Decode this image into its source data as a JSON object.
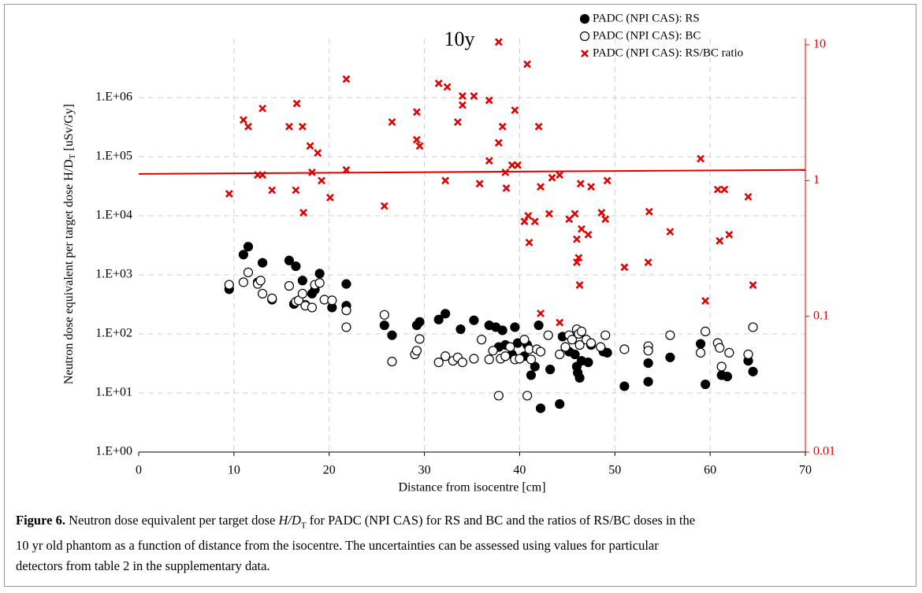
{
  "chart_data": {
    "type": "scatter",
    "title": "10y",
    "x_label": "Distance from isocentre [cm]",
    "y_label": [
      "Neutron dose equivalent per target dose  ",
      "H/D",
      "T",
      " [uSv/Gy]"
    ],
    "xlim": [
      0,
      70
    ],
    "xticks": [
      0,
      10,
      20,
      30,
      40,
      50,
      60,
      70
    ],
    "ylim": [
      1,
      10000000
    ],
    "ylog": true,
    "yticks": [
      {
        "value": 1,
        "label": "1.E+00"
      },
      {
        "value": 10,
        "label": "1.E+01"
      },
      {
        "value": 100,
        "label": "1.E+02"
      },
      {
        "value": 1000,
        "label": "1.E+03"
      },
      {
        "value": 10000,
        "label": "1.E+04"
      },
      {
        "value": 100000,
        "label": "1.E+05"
      },
      {
        "value": 1000000,
        "label": "1.E+06"
      }
    ],
    "y2lim": [
      0.01,
      10
    ],
    "y2log": true,
    "y2ticks": [
      0.01,
      0.1,
      1,
      10
    ],
    "y2color": "#e00000",
    "grid": true,
    "legend": "top-right",
    "series": [
      {
        "name": "PADC (NPI CAS): RS",
        "marker": "filled",
        "color": "#000000",
        "x": [
          9.5,
          11.0,
          11.5,
          12.5,
          13,
          14,
          15.8,
          16.3,
          16.5,
          17.2,
          17.5,
          18.2,
          18.5,
          19,
          20.3,
          21.8,
          21.8,
          25.8,
          26.6,
          29.2,
          29.5,
          31.5,
          32.2,
          33.8,
          35.2,
          36.8,
          37.5,
          37.8,
          38.2,
          38.5,
          39.2,
          39.5,
          39.8,
          40.5,
          40.8,
          41.2,
          41.6,
          42.0,
          42.2,
          43.2,
          44.2,
          44.5,
          45.2,
          45.8,
          46.0,
          46.1,
          46.3,
          46.5,
          47.2,
          47.5,
          48.8,
          49.2,
          51.0,
          53.5,
          53.5,
          55.8,
          59.0,
          59.5,
          61.2,
          61.8,
          64.0,
          64.5
        ],
        "values": [
          570,
          2200,
          3000,
          750,
          1600,
          380,
          1750,
          320,
          1400,
          800,
          310,
          480,
          560,
          1050,
          280,
          700,
          300,
          140,
          95,
          140,
          160,
          175,
          220,
          120,
          170,
          140,
          130,
          60,
          115,
          65,
          45,
          130,
          70,
          42,
          65,
          20,
          28,
          140,
          5.5,
          25,
          6.5,
          90,
          50,
          45,
          28,
          22,
          18,
          35,
          33,
          65,
          50,
          48,
          13,
          15.5,
          32,
          40,
          68,
          14,
          20,
          19,
          35,
          23
        ]
      },
      {
        "name": "PADC (NPI CAS): BC",
        "marker": "open",
        "color": "#000000",
        "x": [
          9.5,
          11.0,
          11.5,
          12.5,
          12.8,
          13.0,
          14.0,
          15.8,
          16.5,
          16.8,
          17.2,
          17.5,
          18.2,
          18.5,
          19.0,
          19.5,
          20.3,
          21.8,
          21.8,
          25.8,
          26.6,
          29.0,
          29.2,
          29.5,
          31.5,
          32.2,
          33.0,
          33.5,
          34.0,
          35.2,
          36.0,
          36.8,
          37.2,
          37.8,
          38.0,
          38.5,
          39.0,
          39.5,
          40.0,
          40.5,
          40.8,
          41.0,
          41.2,
          41.8,
          42.2,
          43.0,
          44.2,
          44.8,
          45.2,
          45.5,
          46.0,
          46.2,
          46.3,
          46.5,
          47.0,
          47.5,
          48.5,
          49.0,
          51.0,
          53.5,
          53.5,
          55.8,
          59.0,
          59.5,
          60.8,
          61.0,
          61.2,
          62.0,
          64.0,
          64.5
        ],
        "values": [
          680,
          750,
          1100,
          700,
          800,
          480,
          400,
          650,
          350,
          370,
          480,
          300,
          280,
          680,
          730,
          380,
          370,
          130,
          250,
          210,
          34,
          45,
          52,
          82,
          33,
          42,
          35,
          40,
          33,
          38,
          80,
          37,
          52,
          9,
          38,
          42,
          60,
          37,
          38,
          80,
          9,
          55,
          37,
          55,
          50,
          95,
          45,
          60,
          95,
          80,
          120,
          100,
          65,
          110,
          80,
          70,
          60,
          95,
          55,
          62,
          52,
          95,
          48,
          110,
          70,
          58,
          28,
          48,
          45,
          130
        ]
      },
      {
        "name": "PADC (NPI CAS): RS/BC ratio",
        "marker": "cross",
        "color": "#e00000",
        "axis": "y2",
        "x": [
          9.5,
          11.0,
          11.5,
          12.5,
          13.0,
          13.0,
          14.0,
          15.8,
          16.5,
          16.6,
          17.2,
          17.3,
          18.0,
          18.2,
          18.8,
          19.2,
          20.1,
          21.8,
          21.8,
          25.8,
          26.6,
          29.2,
          29.2,
          29.5,
          31.5,
          32.2,
          32.4,
          33.5,
          34.0,
          34.0,
          35.2,
          35.8,
          36.8,
          36.8,
          37.8,
          37.8,
          38.2,
          38.5,
          38.6,
          39.2,
          39.5,
          39.8,
          40.5,
          40.8,
          40.9,
          41.0,
          41.6,
          42.0,
          42.2,
          42.2,
          43.1,
          43.4,
          44.2,
          44.2,
          45.2,
          45.8,
          46.0,
          46.0,
          46.2,
          46.3,
          46.4,
          46.5,
          47.2,
          47.5,
          48.6,
          49.0,
          49.2,
          51.0,
          53.5,
          53.6,
          55.8,
          59.0,
          59.5,
          60.8,
          61.0,
          61.5,
          62.0,
          64.0,
          64.5
        ],
        "values": [
          0.8,
          2.8,
          2.5,
          1.1,
          1.1,
          3.4,
          0.85,
          2.5,
          0.85,
          3.7,
          2.5,
          0.58,
          1.8,
          1.15,
          1.6,
          1.0,
          0.75,
          5.6,
          1.2,
          0.65,
          2.7,
          3.2,
          2.0,
          1.8,
          5.2,
          1.0,
          4.9,
          2.7,
          4.2,
          3.6,
          4.2,
          0.95,
          3.9,
          1.4,
          1.9,
          10.5,
          2.5,
          1.15,
          0.88,
          1.3,
          3.3,
          1.3,
          0.5,
          7.2,
          0.55,
          0.35,
          0.5,
          2.5,
          0.9,
          0.105,
          0.57,
          1.05,
          1.1,
          0.09,
          0.52,
          0.57,
          0.37,
          0.25,
          0.27,
          0.17,
          0.95,
          0.44,
          0.4,
          0.9,
          0.58,
          0.52,
          1.0,
          0.23,
          0.25,
          0.59,
          0.42,
          1.45,
          0.13,
          0.86,
          0.36,
          0.86,
          0.4,
          0.76,
          0.17
        ]
      }
    ],
    "trend_line": {
      "axis": "y2",
      "color": "#e00000",
      "x": [
        0,
        70
      ],
      "values": [
        1.12,
        1.2
      ]
    }
  },
  "caption": {
    "label": "Figure 6.",
    "pre": " Neutron dose equivalent per target dose ",
    "symbol": "H/D",
    "sub": "T",
    "line1": " for PADC (NPI CAS) for RS and BC and the ratios of RS/BC doses in the",
    "line2": "10 yr old phantom as a function of distance from the isocentre. The uncertainties can be assessed using values for particular",
    "line3": "detectors from table 2 in the supplementary data."
  }
}
